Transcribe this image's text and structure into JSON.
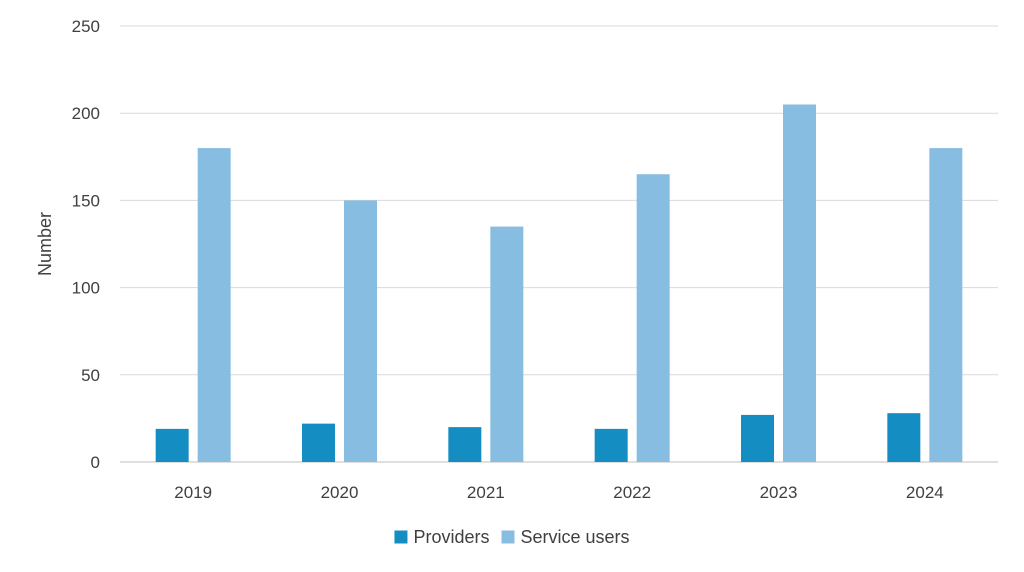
{
  "chart_data": {
    "type": "bar",
    "title": "",
    "xlabel": "",
    "ylabel": "Number",
    "ylim": [
      0,
      250
    ],
    "yticks": [
      0,
      50,
      100,
      150,
      200,
      250
    ],
    "grid": true,
    "legend_position": "bottom",
    "categories": [
      "2019",
      "2020",
      "2021",
      "2022",
      "2023",
      "2024"
    ],
    "series": [
      {
        "name": "Providers",
        "color": "#138dc2",
        "values": [
          19,
          22,
          20,
          19,
          27,
          28
        ]
      },
      {
        "name": "Service users",
        "color": "#88bde2",
        "values": [
          180,
          150,
          135,
          165,
          205,
          180
        ]
      }
    ]
  }
}
